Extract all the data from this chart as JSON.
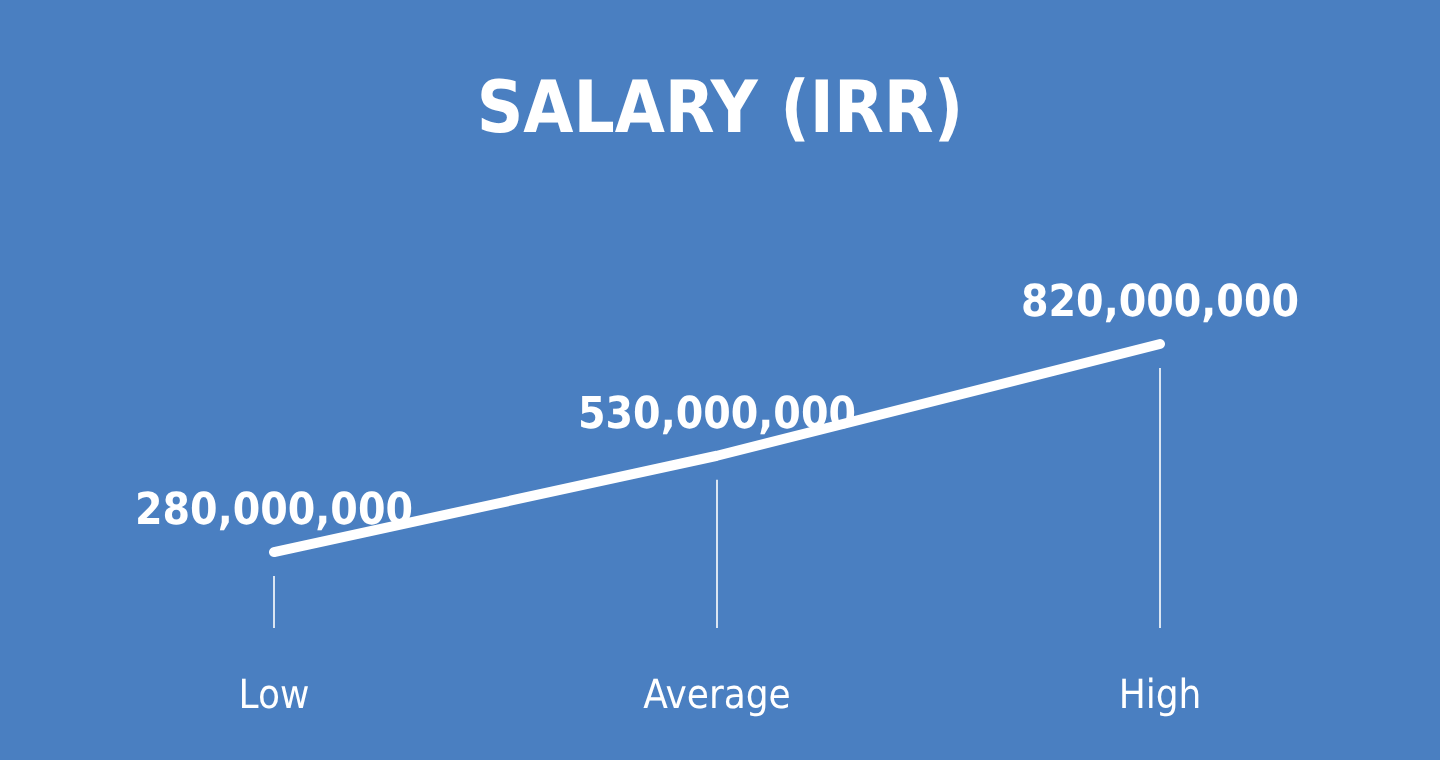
{
  "chart_data": {
    "type": "line",
    "title": "SALARY (IRR)",
    "categories": [
      "Low",
      "Average",
      "High"
    ],
    "series": [
      {
        "color": "#ffffff",
        "values": [
          280000000,
          530000000,
          820000000
        ],
        "value_labels": [
          "280,000,000",
          "530,000,000",
          "820,000,000"
        ]
      }
    ],
    "marker": "none",
    "grid": "x"
  }
}
